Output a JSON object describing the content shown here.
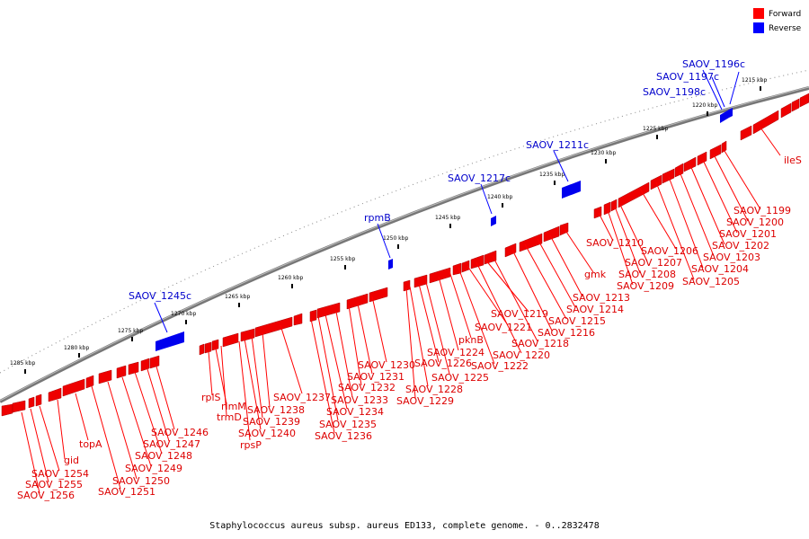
{
  "caption": "Staphylococcus aureus subsp. aureus ED133, complete genome. - 0..2832478",
  "legend": [
    {
      "label": "Forward",
      "color": "#ff0000"
    },
    {
      "label": "Reverse",
      "color": "#0000ff"
    }
  ],
  "ticks": [
    "1215 kbp",
    "1220 kbp",
    "1225 kbp",
    "1230 kbp",
    "1235 kbp",
    "1240 kbp",
    "1245 kbp",
    "1250 kbp",
    "1255 kbp",
    "1260 kbp",
    "1265 kbp",
    "1270 kbp",
    "1275 kbp",
    "1280 kbp",
    "1285 kbp"
  ],
  "reverse_genes": [
    "SAOV_1196c",
    "SAOV_1197c",
    "SAOV_1198c",
    "SAOV_1211c",
    "SAOV_1217c",
    "rpmB",
    "SAOV_1245c"
  ],
  "forward_genes": [
    "ileS",
    "SAOV_1199",
    "SAOV_1200",
    "SAOV_1201",
    "SAOV_1202",
    "SAOV_1203",
    "SAOV_1204",
    "SAOV_1205",
    "SAOV_1206",
    "SAOV_1207",
    "SAOV_1208",
    "SAOV_1209",
    "SAOV_1210",
    "gmk",
    "SAOV_1213",
    "SAOV_1214",
    "SAOV_1215",
    "SAOV_1216",
    "SAOV_1218",
    "SAOV_1219",
    "SAOV_1220",
    "SAOV_1221",
    "SAOV_1222",
    "pknB",
    "SAOV_1224",
    "SAOV_1225",
    "SAOV_1226",
    "SAOV_1228",
    "SAOV_1229",
    "SAOV_1230",
    "SAOV_1231",
    "SAOV_1232",
    "SAOV_1233",
    "SAOV_1234",
    "SAOV_1235",
    "SAOV_1236",
    "SAOV_1237",
    "SAOV_1238",
    "SAOV_1239",
    "SAOV_1240",
    "rpsP",
    "trmD",
    "rimM",
    "rplS",
    "SAOV_1246",
    "SAOV_1247",
    "SAOV_1248",
    "SAOV_1249",
    "SAOV_1250",
    "SAOV_1251",
    "topA",
    "gid",
    "SAOV_1254",
    "SAOV_1255",
    "SAOV_1256"
  ]
}
